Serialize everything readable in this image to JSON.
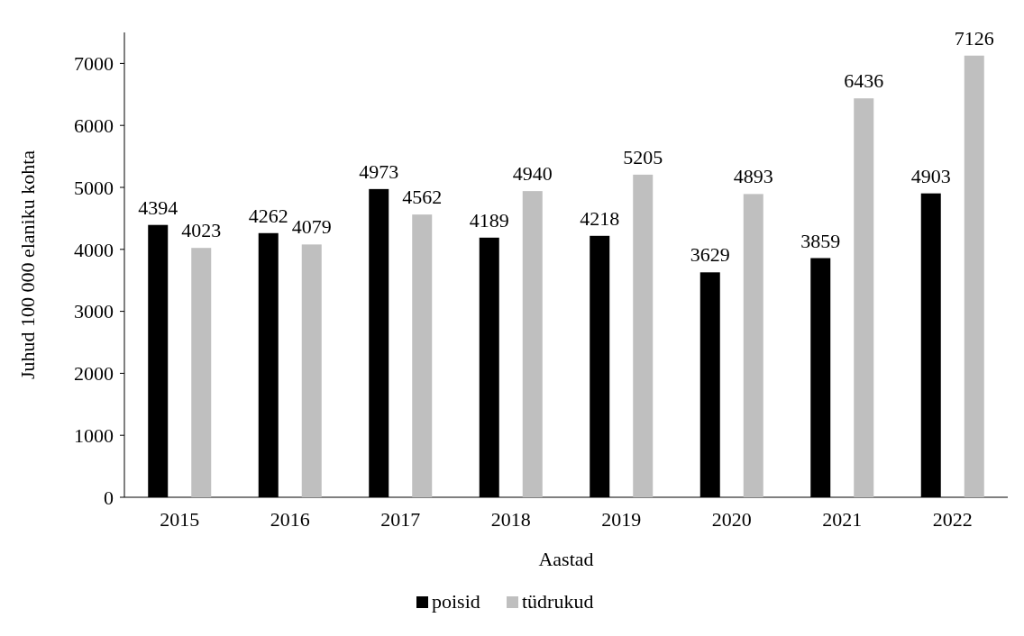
{
  "chart_data": {
    "type": "bar",
    "xlabel": "Aastad",
    "ylabel": "Juhud 100 000 elaniku kohta",
    "categories": [
      "2015",
      "2016",
      "2017",
      "2018",
      "2019",
      "2020",
      "2021",
      "2022"
    ],
    "series": [
      {
        "name": "poisid",
        "color": "#000000",
        "values": [
          4394,
          4262,
          4973,
          4189,
          4218,
          3629,
          3859,
          4903
        ]
      },
      {
        "name": "tüdrukud",
        "color": "#bfbfbf",
        "values": [
          4023,
          4079,
          4562,
          4940,
          5205,
          4893,
          6436,
          7126
        ]
      }
    ],
    "ylim": [
      0,
      7500
    ],
    "yticks": [
      0,
      1000,
      2000,
      3000,
      4000,
      5000,
      6000,
      7000
    ],
    "grid": false,
    "legend": "bottom",
    "data_labels": true
  }
}
